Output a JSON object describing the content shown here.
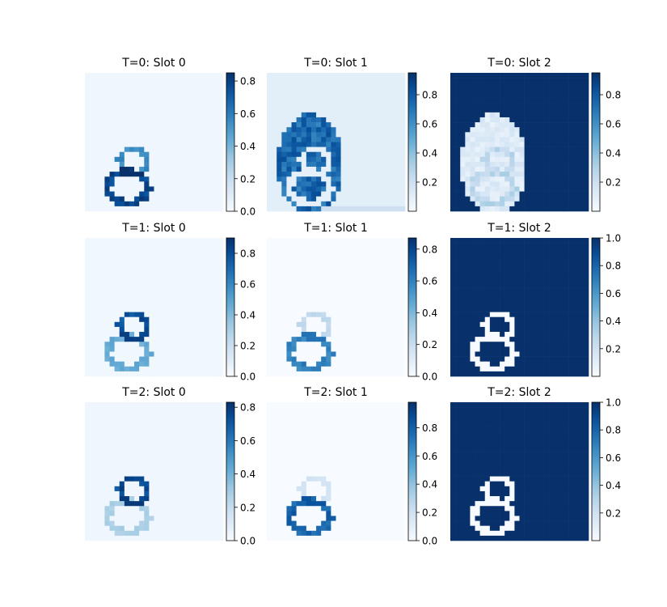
{
  "chart_data": [
    {
      "type": "heatmap",
      "title": "T=0: Slot 0",
      "colormap": "Blues",
      "colorbar": {
        "range": [
          0.0,
          0.85
        ],
        "ticks": [
          0.0,
          0.2,
          0.4,
          0.6,
          0.8
        ],
        "tick_labels": [
          "0.0",
          "0.2",
          "0.4",
          "0.6",
          "0.8"
        ]
      },
      "pattern": "outline",
      "values": {
        "background": 0.03,
        "upper_ring": 0.6,
        "lower_ring": 0.85
      }
    },
    {
      "type": "heatmap",
      "title": "T=0: Slot 1",
      "colormap": "Blues",
      "colorbar": {
        "range": [
          0.0,
          0.95
        ],
        "ticks": [
          0.2,
          0.4,
          0.6,
          0.8
        ],
        "tick_labels": [
          "0.2",
          "0.4",
          "0.6",
          "0.8"
        ]
      },
      "pattern": "blob",
      "values": {
        "background": 0.1,
        "blob": 0.85
      }
    },
    {
      "type": "heatmap",
      "title": "T=0: Slot 2",
      "colormap": "Blues",
      "colorbar": {
        "range": [
          0.0,
          0.95
        ],
        "ticks": [
          0.2,
          0.4,
          0.6,
          0.8
        ],
        "tick_labels": [
          "0.2",
          "0.4",
          "0.6",
          "0.8"
        ]
      },
      "pattern": "inverse-blob",
      "values": {
        "background": 0.95,
        "blob": 0.12
      }
    },
    {
      "type": "heatmap",
      "title": "T=1: Slot 0",
      "colormap": "Blues",
      "colorbar": {
        "range": [
          0.0,
          0.9
        ],
        "ticks": [
          0.0,
          0.2,
          0.4,
          0.6,
          0.8
        ],
        "tick_labels": [
          "0.0",
          "0.2",
          "0.4",
          "0.6",
          "0.8"
        ]
      },
      "pattern": "outline",
      "values": {
        "background": 0.03,
        "upper_ring": 0.85,
        "lower_ring": 0.5
      }
    },
    {
      "type": "heatmap",
      "title": "T=1: Slot 1",
      "colormap": "Blues",
      "colorbar": {
        "range": [
          0.0,
          0.87
        ],
        "ticks": [
          0.0,
          0.2,
          0.4,
          0.6,
          0.8
        ],
        "tick_labels": [
          "0.0",
          "0.2",
          "0.4",
          "0.6",
          "0.8"
        ]
      },
      "pattern": "outline",
      "values": {
        "background": 0.0,
        "upper_ring": 0.25,
        "lower_ring": 0.65
      }
    },
    {
      "type": "heatmap",
      "title": "T=1: Slot 2",
      "colormap": "Blues",
      "colorbar": {
        "range": [
          0.0,
          1.0
        ],
        "ticks": [
          0.2,
          0.4,
          0.6,
          0.8,
          1.0
        ],
        "tick_labels": [
          "0.2",
          "0.4",
          "0.6",
          "0.8",
          "1.0"
        ]
      },
      "pattern": "inverse-outline",
      "values": {
        "background": 1.0,
        "outline": 0.0
      }
    },
    {
      "type": "heatmap",
      "title": "T=2: Slot 0",
      "colormap": "Blues",
      "colorbar": {
        "range": [
          0.0,
          0.83
        ],
        "ticks": [
          0.0,
          0.2,
          0.4,
          0.6,
          0.8
        ],
        "tick_labels": [
          "0.0",
          "0.2",
          "0.4",
          "0.6",
          "0.8"
        ]
      },
      "pattern": "outline",
      "values": {
        "background": 0.03,
        "upper_ring": 0.8,
        "lower_ring": 0.3
      }
    },
    {
      "type": "heatmap",
      "title": "T=2: Slot 1",
      "colormap": "Blues",
      "colorbar": {
        "range": [
          0.0,
          0.98
        ],
        "ticks": [
          0.0,
          0.2,
          0.4,
          0.6,
          0.8
        ],
        "tick_labels": [
          "0.0",
          "0.2",
          "0.4",
          "0.6",
          "0.8"
        ]
      },
      "pattern": "outline",
      "values": {
        "background": 0.0,
        "upper_ring": 0.2,
        "lower_ring": 0.85
      }
    },
    {
      "type": "heatmap",
      "title": "T=2: Slot 2",
      "colormap": "Blues",
      "colorbar": {
        "range": [
          0.0,
          1.0
        ],
        "ticks": [
          0.2,
          0.4,
          0.6,
          0.8,
          1.0
        ],
        "tick_labels": [
          "0.2",
          "0.4",
          "0.6",
          "0.8",
          "1.0"
        ]
      },
      "pattern": "inverse-outline",
      "values": {
        "background": 1.0,
        "outline": 0.0
      }
    }
  ],
  "colors": {
    "cmap_low": "#f7fbff",
    "cmap_mid": "#6baed6",
    "cmap_high": "#08306b"
  }
}
